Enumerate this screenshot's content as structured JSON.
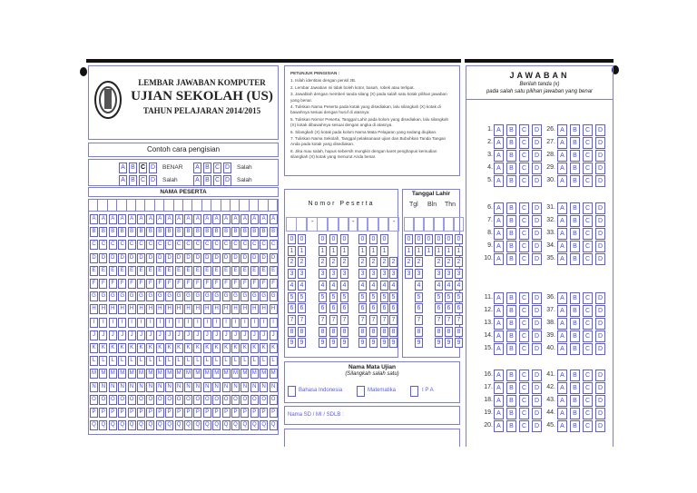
{
  "header": {
    "line1": "LEMBAR JAWABAN KOMPUTER",
    "line2": "UJIAN SEKOLAH (US)",
    "line3": "TAHUN PELAJARAN 2014/2015",
    "logo": "tut-wuri-handayani-emblem"
  },
  "example": {
    "title": "Contoh cara pengisian",
    "options": [
      "A",
      "B",
      "C",
      "D"
    ],
    "correct_label": "BENAR",
    "wrong_label": "Salah"
  },
  "name_section": {
    "title": "NAMA PESERTA",
    "letters": [
      "A",
      "B",
      "C",
      "D",
      "E",
      "F",
      "G",
      "H",
      "I",
      "J",
      "K",
      "L",
      "M",
      "N",
      "O",
      "P",
      "Q"
    ],
    "columns": 20
  },
  "instructions": {
    "title": "PETUNJUK PENGISIAN :",
    "items": [
      "1. Isilah identitas dengan pensil 2B.",
      "2. Lembar Jawaban ini tidak boleh kotor, basah, robek atau terlipat.",
      "3. Jawablah dengan memberi tanda silang (X) pada salah satu kotak pilihan jawaban yang benar.",
      "4. Tuliskan Nama Peserta pada kotak yang disediakan, lalu silangkah (X) kotak di bawahnya sesuai dengan huruf di atasnya.",
      "5. Tuliskan Nomor Peserta, Tanggal Lahir pada kolom yang disediakan, lalu silangkah (X) kotak dibawahnya sesuai dengan angka di atasnya.",
      "6. Silangkah (X) kotak pada kolom Nama Mata Pelajaran yang sedang diujikan.",
      "7. Tuliskan Nama Sekolah, Tanggal pelaksanaan ujian dan Bubuhkan Tanda Tangan Anda pada kotak yang disediakan.",
      "8. Jika mau salah, hapus sebersih mungkin dengan karet penghapus kemudian silangkah (X) kotak yang menurut Anda benar."
    ]
  },
  "nomor_peserta": {
    "title": "Nomor Peserta",
    "dash": "-",
    "digits": [
      "0",
      "1",
      "2",
      "3",
      "4",
      "5",
      "6",
      "7",
      "8",
      "9"
    ]
  },
  "tanggal_lahir": {
    "title": "Tanggal Lahir",
    "tgl": "Tgl",
    "bln": "Bln",
    "thn": "Thn"
  },
  "mata_ujian": {
    "title": "Nama Mata Ujian",
    "subtitle": "(Silangkah salah satu)",
    "options": [
      "Bahasa Indonesia",
      "Matematika",
      "I P A"
    ]
  },
  "school": {
    "label": "Nama SD / MI / SDLB :"
  },
  "answers": {
    "title": "JAWABAN",
    "sub1": "Berilah tanda (x)",
    "sub2": "pada salah satu pilihan jawaban yang benar",
    "options": [
      "A",
      "B",
      "C",
      "D"
    ],
    "left": [
      "1.",
      "2.",
      "3.",
      "4.",
      "5.",
      "6.",
      "7.",
      "8.",
      "9.",
      "10.",
      "11.",
      "12.",
      "13.",
      "14.",
      "15.",
      "16.",
      "17.",
      "18.",
      "19.",
      "20."
    ],
    "right": [
      "26.",
      "27.",
      "28.",
      "29.",
      "30.",
      "31.",
      "32.",
      "33.",
      "34.",
      "35.",
      "36.",
      "37.",
      "38.",
      "39.",
      "40.",
      "41.",
      "42.",
      "43.",
      "44.",
      "45."
    ]
  },
  "colors": {
    "border": "#7b7bf0",
    "box": "#5a5af0",
    "ink": "#111111"
  }
}
